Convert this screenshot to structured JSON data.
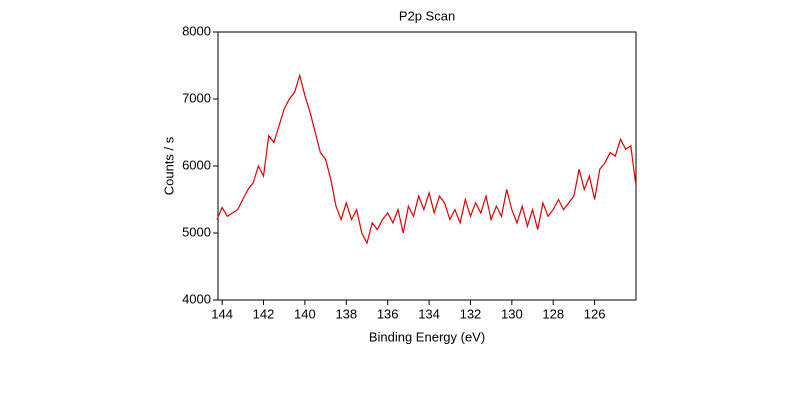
{
  "chart_data": {
    "type": "line",
    "title": "P2p Scan",
    "x_label": "Binding Energy (eV)",
    "y_label": "Counts / s",
    "color": "#e00000",
    "x": [
      144.25,
      144,
      143.75,
      143.5,
      143.25,
      143,
      142.75,
      142.5,
      142.25,
      142,
      141.75,
      141.5,
      141.25,
      141,
      140.75,
      140.5,
      140.25,
      140,
      139.75,
      139.5,
      139.25,
      139,
      138.75,
      138.5,
      138.25,
      138,
      137.75,
      137.5,
      137.25,
      137,
      136.75,
      136.5,
      136.25,
      136,
      135.75,
      135.5,
      135.25,
      135,
      134.75,
      134.5,
      134.25,
      134,
      133.75,
      133.5,
      133.25,
      133,
      132.75,
      132.5,
      132.25,
      132,
      131.75,
      131.5,
      131.25,
      131,
      130.75,
      130.5,
      130.25,
      130,
      129.75,
      129.5,
      129.25,
      129,
      128.75,
      128.5,
      128.25,
      128,
      127.75,
      127.5,
      127.25,
      127,
      126.75,
      126.5,
      126.25,
      126,
      125.75,
      125.5,
      125.25,
      125,
      124.75,
      124.5,
      124.25,
      124
    ],
    "values": [
      5200,
      5380,
      5250,
      5300,
      5350,
      5500,
      5650,
      5750,
      6000,
      5850,
      6450,
      6350,
      6600,
      6850,
      7000,
      7100,
      7350,
      7050,
      6800,
      6500,
      6200,
      6100,
      5800,
      5400,
      5200,
      5450,
      5200,
      5350,
      5000,
      4850,
      5150,
      5050,
      5200,
      5300,
      5150,
      5350,
      5000,
      5400,
      5250,
      5550,
      5350,
      5600,
      5300,
      5550,
      5450,
      5200,
      5350,
      5150,
      5500,
      5250,
      5450,
      5300,
      5550,
      5200,
      5400,
      5250,
      5650,
      5350,
      5150,
      5400,
      5100,
      5350,
      5050,
      5450,
      5250,
      5350,
      5500,
      5350,
      5450,
      5550,
      5950,
      5650,
      5850,
      5500,
      5950,
      6050,
      6200,
      6150,
      6400,
      6250,
      6300,
      5700
    ],
    "xlim": [
      144.2,
      124
    ],
    "xticks": [
      144,
      142,
      140,
      138,
      136,
      134,
      132,
      130,
      128,
      126
    ],
    "ylim": [
      4000,
      8000
    ],
    "yticks": [
      4000,
      5000,
      6000,
      7000,
      8000
    ],
    "grid": false
  }
}
